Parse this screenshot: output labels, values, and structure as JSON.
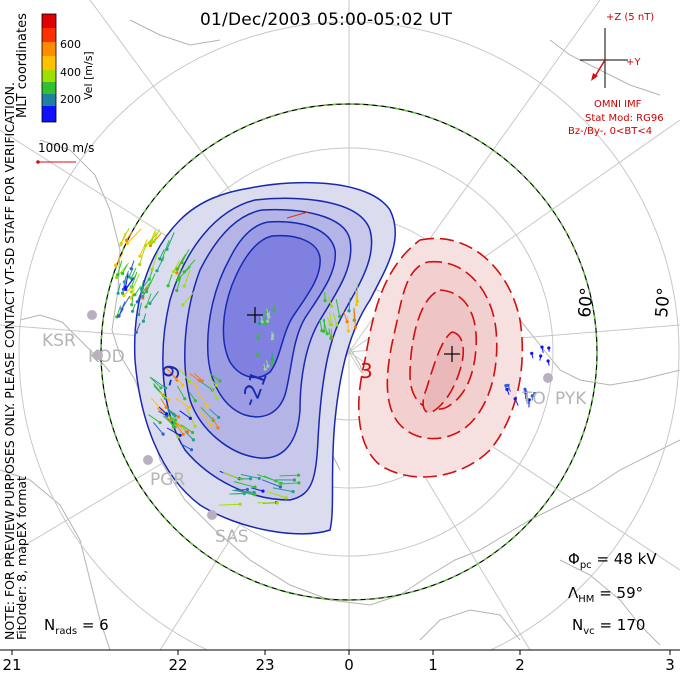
{
  "title": "01/Dec/2003 05:00-05:02 UT",
  "coord_system": "MLT coordinates",
  "colorbar": {
    "label": "Vel [m/s]",
    "ticks": [
      "600",
      "400",
      "200"
    ],
    "colors": [
      "#e00000",
      "#ff7a00",
      "#ffc000",
      "#a0e000",
      "#30c030",
      "#20a090",
      "#3060d0",
      "#1010ff"
    ]
  },
  "reference_vector": "1000 m/s",
  "notice": "NOTE: FOR PREVIEW PURPOSES ONLY. PLEASE CONTACT VT-SD STAFF FOR VERIFICATION.",
  "fit_order": "FitOrder: 8, mapEX format",
  "imf": {
    "scale": "+Z (5 nT)",
    "y_axis": "+Y",
    "source": "OMNI IMF",
    "model": "Stat Mod: RG96",
    "condition": "Bz-/By-, 0<BT<4"
  },
  "latitude_labels": [
    "60°",
    "50°"
  ],
  "mlt_ticks": [
    "21",
    "22",
    "23",
    "0",
    "1",
    "2",
    "3"
  ],
  "contour_labels": [
    "-9",
    "-21",
    "3"
  ],
  "stations": [
    "KSR",
    "KOD",
    "PGR",
    "SAS",
    "PYK",
    "TO"
  ],
  "stats": {
    "phi_pc": {
      "symbol": "Φ",
      "sub": "pc",
      "value": "= 48 kV"
    },
    "lambda_hm": {
      "symbol": "Λ",
      "sub": "HM",
      "value": "= 59°"
    },
    "n_vc": {
      "symbol": "N",
      "sub": "vc",
      "value": "= 170"
    },
    "n_rads": {
      "symbol": "N",
      "sub": "rads",
      "value": "= 6"
    }
  },
  "colors": {
    "negative_cell": "#1020c0",
    "positive_cell": "#d01010",
    "boundary": "#60c040",
    "grid": "#c8c8c8",
    "coast": "#b4b4b4"
  }
}
